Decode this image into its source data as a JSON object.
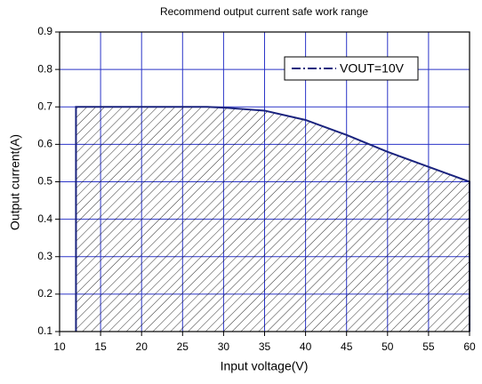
{
  "chart_data": {
    "type": "line",
    "title": "Recommend output current safe work range",
    "xlabel": "Input voltage(V)",
    "ylabel": "Output current(A)",
    "x": [
      12,
      12,
      15,
      20,
      25,
      28,
      30,
      35,
      40,
      45,
      50,
      55,
      60,
      60
    ],
    "series": [
      {
        "name": "VOUT=10V",
        "color": "#1a237e",
        "values": [
          0.1,
          0.7,
          0.7,
          0.7,
          0.7,
          0.7,
          0.698,
          0.69,
          0.665,
          0.625,
          0.58,
          0.54,
          0.5,
          0.1
        ]
      }
    ],
    "xlim": [
      10,
      60
    ],
    "ylim": [
      0.1,
      0.9
    ],
    "xticks": [
      10,
      15,
      20,
      25,
      30,
      35,
      40,
      45,
      50,
      55,
      60
    ],
    "yticks": [
      0.1,
      0.2,
      0.3,
      0.4,
      0.5,
      0.6,
      0.7,
      0.8,
      0.9
    ],
    "grid": true,
    "grid_color": "#2b35c8",
    "fill": "hatched",
    "legend": "upper right"
  }
}
